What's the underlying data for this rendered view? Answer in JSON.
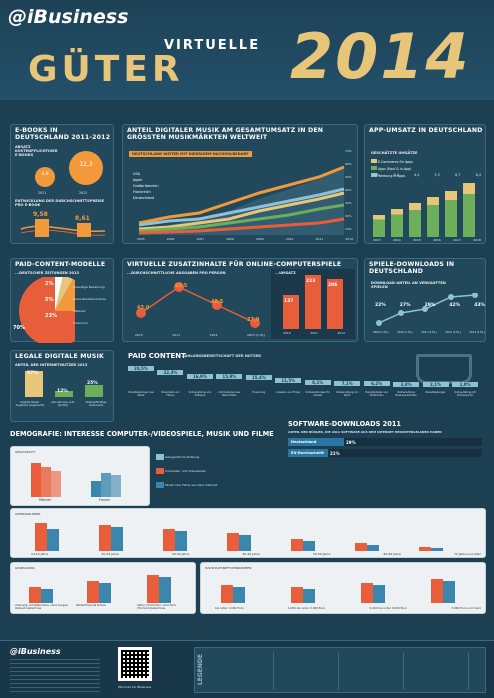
{
  "header": {
    "logo": "@iBusiness",
    "title_line1": "VIRTUELLE",
    "title_line2": "GÜTER",
    "year": "2014"
  },
  "ebooks": {
    "title": "E-BOOKS IN DEUTSCHLAND 2011-2012",
    "sub1": "ABSATZ KOSTENPFLICHTIGER E-BOOKS",
    "v1": "4,9",
    "v2": "12,3",
    "u": "Mio.",
    "y1": "2011",
    "y2": "2012",
    "sub2": "ENTWICKLUNG DER DURCHSCHNITTSPREISE PRO E-BOOK",
    "p1": "9,58",
    "p2": "8,61",
    "pu": "Euro"
  },
  "music": {
    "title": "ANTEIL DIGITALER MUSIK AM GESAMTUMSATZ IN DEN GRÖSSTEN MUSIKMÄRKTEN WELTWEIT",
    "note": "DEUTSCHLAND WEITER MIT NIEDRIGEM NACHHOLBEDARF",
    "legend": [
      "USA",
      "Japan",
      "Großbritannien",
      "Frankreich",
      "Deutschland"
    ],
    "years": [
      "2005",
      "2006",
      "2007",
      "2008",
      "2009",
      "2010",
      "2011",
      "2012"
    ],
    "ticks": [
      "70%",
      "60%",
      "50%",
      "40%",
      "30%",
      "20%",
      "10%"
    ]
  },
  "app": {
    "title": "APP-UMSATZ IN DEUTSCHLAND",
    "sub": "GESCHÄTZTE UMSÄTZE",
    "legend": [
      "E-Commerce für Apps",
      "Apps (Kauf & In-App)",
      "Werbung in Apps"
    ],
    "totals": [
      "2,6",
      "3,4",
      "4,4",
      "5,5",
      "6,7",
      "8,4"
    ],
    "years": [
      "2013",
      "2014",
      "2015",
      "2016",
      "2017",
      "2018"
    ]
  },
  "paid_models": {
    "title": "PAID-CONTENT-MODELLE",
    "sub": "...DEUTSCHER ZEITUNGEN 2013",
    "labels": [
      "Freiwillige Bezahlung",
      "Harte Bezahlschranke",
      "Metered",
      "Freemium"
    ],
    "values": [
      "2%",
      "5%",
      "23%",
      "70%"
    ]
  },
  "games": {
    "title": "VIRTUELLE ZUSATZINHALTE FÜR ONLINE-COMPUTERSPIELE",
    "sub1": "...DURCHSCHNITTLICHE AUSGABEN PRO PERSON",
    "vals": [
      "43,0",
      "63,5",
      "48,5",
      "37,9"
    ],
    "years": [
      "2010",
      "2011",
      "2012",
      "2013 (1.HJ.)"
    ],
    "sub2": "...UMSATZ",
    "u1": "Mio. €",
    "bars": [
      "137",
      "223",
      "206"
    ],
    "byears": [
      "2010",
      "2011",
      "2012"
    ]
  },
  "spiele": {
    "title": "SPIELE-DOWNLOADS IN DEUTSCHLAND",
    "sub": "DOWNLOAD-ANTEIL AN VERKAUFTEN SPIELEN",
    "vals": [
      "22%",
      "27%",
      "29%",
      "42%",
      "43%"
    ],
    "years": [
      "2009 (1.HJ.)",
      "2010 (1.HJ.)",
      "2011 (1.HJ.)",
      "2012 (1.HJ.)",
      "2013 (1.HJ.)"
    ]
  },
  "legal": {
    "title": "LEGALE DIGITALE MUSIK",
    "sub": "ANTEIL DER INTERNETNUTZER 2013",
    "vals": [
      "57%",
      "12%",
      "25%"
    ],
    "labels": [
      "Digitale Musik-Angebote (insgesamt)",
      "Abo-Services (z.B. Spotify)",
      "Kostenpflichtige Downloads"
    ]
  },
  "paid": {
    "title": "PAID CONTENT",
    "sub": "ZAHLUNGSBEREITSCHAFT DER NUTZER",
    "vals": [
      "28,5%",
      "22,3%",
      "16,9%",
      "15,9%",
      "15,4%",
      "11,5%",
      "8,1%",
      "7,1%",
      "6,2%",
      "3,8%",
      "2,1%",
      "1,0%"
    ],
    "labels": [
      "Dienstleistungen aus Musik",
      "Downloads von Filmen",
      "Onlinenutzung von Software",
      "Informationen aus Nachrichten",
      "E-Learning",
      "Ansehen von Filmen",
      "Onlinenutzungen für Games",
      "Onlinenutzung von Sport",
      "Herunterladen von Hörbüchern",
      "Onlinenutzung Business-Portalen",
      "Dienstleistungen",
      "Online-Dating mit Partnersuche"
    ]
  },
  "demo": {
    "title": "DEMOGRAFIE: INTERESSE COMPUTER-/VIDEOSPIELE, MUSIK UND FILME",
    "g1": "GESCHLECHT",
    "g2": "ALTERSGRUPPEN",
    "g3": "AUSBILDUNG",
    "g4": "HAUSHALTSNETTOEINKOMMEN",
    "sexes": [
      "Männer",
      "Frauen"
    ],
    "ages": [
      "14-19 Jahre",
      "20-29 Jahre",
      "30-39 Jahre",
      "40-49 Jahre",
      "50-59 Jahre",
      "60-69 Jahre",
      "70 Jahre und älter"
    ],
    "edu": [
      "Volks-allg. Schulabschluss, ohne Ausgeb. Volksschulabschluss",
      "Weiterführende Schule",
      "Abitur, Hochschulr. ohne Fach-(Hochschul)abschluss"
    ],
    "inc": [
      "bis unter 1.000 Euro",
      "1.000 bis unter 2.000 Euro",
      "2.000 bis unter 3.000 Euro",
      "3.000 Euro und mehr"
    ],
    "legend": [
      "Gelegentliche Nutzung",
      "Computer- und Videospiele",
      "Musik oder Filme aus dem Internet"
    ]
  },
  "soft": {
    "title": "SOFTWARE-DOWNLOADS 2011",
    "sub": "ANTEIL DER BÜRGER, DIE 2011 SOFTWARE AUS DEM INTERNET HERUNTERGELADEN HABEN",
    "r1": "Deutschland",
    "v1": "29%",
    "r2": "EU-Durchschnitt",
    "v2": "21%"
  },
  "footer": {
    "legend": "LEGENDE",
    "qr": "QR-Code für iBusiness"
  }
}
